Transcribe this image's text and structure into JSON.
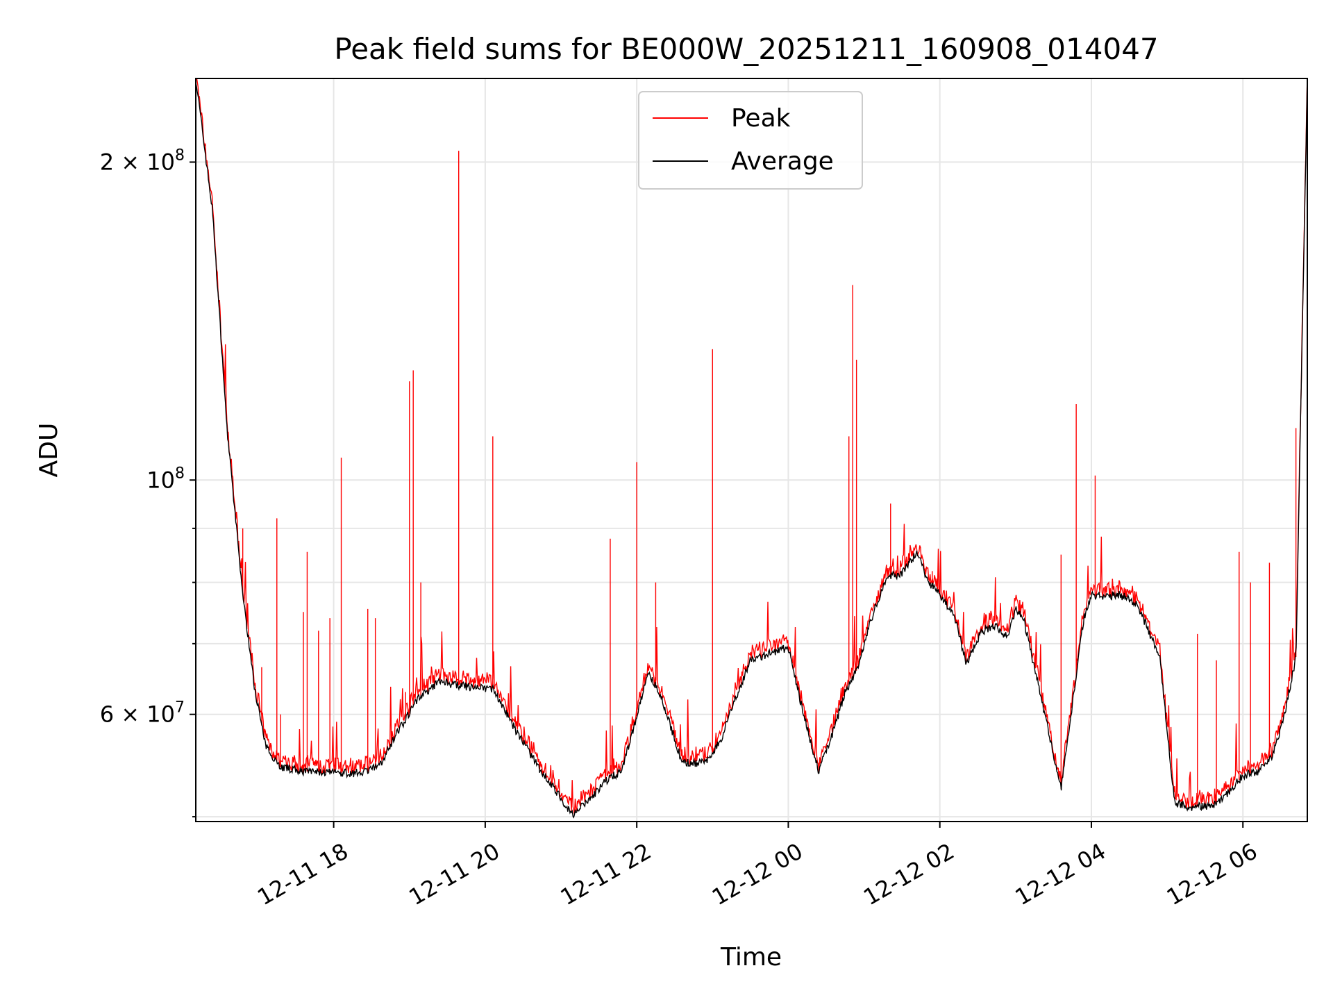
{
  "chart_data": {
    "type": "line",
    "title": "Peak field sums for BE000W_20251211_160908_014047",
    "xlabel": "Time",
    "ylabel": "ADU",
    "yscale": "log",
    "ylim": [
      47500000,
      240000000
    ],
    "xlim_hours": [
      16.18,
      30.85
    ],
    "x_unit": "hours since 2025-12-11 00:00",
    "x_ticks": [
      {
        "value": 18,
        "label": "12-11 18"
      },
      {
        "value": 20,
        "label": "12-11 20"
      },
      {
        "value": 22,
        "label": "12-11 22"
      },
      {
        "value": 24,
        "label": "12-12 00"
      },
      {
        "value": 26,
        "label": "12-12 02"
      },
      {
        "value": 28,
        "label": "12-12 04"
      },
      {
        "value": 30,
        "label": "12-12 06"
      }
    ],
    "y_major_ticks": [
      {
        "value": 60000000,
        "label": "6 × 10",
        "exp": "7"
      },
      {
        "value": 100000000,
        "label": "10",
        "exp": "8"
      },
      {
        "value": 200000000,
        "label": "2 × 10",
        "exp": "8"
      }
    ],
    "y_minor_ticks": [
      48000000,
      70000000,
      80000000,
      90000000
    ],
    "grid": true,
    "legend": {
      "position": "top-center",
      "entries": [
        {
          "label": "Peak",
          "color": "#ff0000"
        },
        {
          "label": "Average",
          "color": "#000000"
        }
      ]
    },
    "series": [
      {
        "name": "Average",
        "color": "#000000",
        "x": [
          16.18,
          16.4,
          16.6,
          16.8,
          16.95,
          17.1,
          17.3,
          17.6,
          18.0,
          18.3,
          18.6,
          18.8,
          19.1,
          19.4,
          19.6,
          19.9,
          20.1,
          20.4,
          20.7,
          21.0,
          21.15,
          21.4,
          21.6,
          21.8,
          21.95,
          22.15,
          22.3,
          22.6,
          22.9,
          23.1,
          23.3,
          23.5,
          23.75,
          23.9,
          24.0,
          24.2,
          24.4,
          24.6,
          24.75,
          24.9,
          25.1,
          25.3,
          25.5,
          25.7,
          25.85,
          26.0,
          26.2,
          26.35,
          26.55,
          26.75,
          26.9,
          27.0,
          27.1,
          27.3,
          27.6,
          27.9,
          28.0,
          28.2,
          28.35,
          28.6,
          28.9,
          29.1,
          29.3,
          29.6,
          29.8,
          30.0,
          30.2,
          30.4,
          30.55,
          30.7,
          30.85
        ],
        "values": [
          240000000,
          180000000,
          110000000,
          78000000,
          64000000,
          56000000,
          53500000,
          53000000,
          52800000,
          52800000,
          53500000,
          57000000,
          62000000,
          64500000,
          64000000,
          63500000,
          63500000,
          58000000,
          53500000,
          50000000,
          48200000,
          50000000,
          52000000,
          53000000,
          58000000,
          65500000,
          63000000,
          54000000,
          54000000,
          56500000,
          62000000,
          67500000,
          68500000,
          69000000,
          69500000,
          60000000,
          53000000,
          58000000,
          63000000,
          66000000,
          74000000,
          81000000,
          81500000,
          85500000,
          80000000,
          78000000,
          74000000,
          67000000,
          72000000,
          72500000,
          71000000,
          75500000,
          74000000,
          64000000,
          51000000,
          74000000,
          78000000,
          77500000,
          78000000,
          76500000,
          68000000,
          49500000,
          49000000,
          49200000,
          50500000,
          52500000,
          53000000,
          55000000,
          60000000,
          68000000,
          240000000
        ]
      }
    ],
    "peak_spikes": [
      {
        "x": 16.55,
        "value": 128000000
      },
      {
        "x": 16.8,
        "value": 90000000
      },
      {
        "x": 17.05,
        "value": 66500000
      },
      {
        "x": 17.25,
        "value": 92000000
      },
      {
        "x": 17.3,
        "value": 60000000
      },
      {
        "x": 17.6,
        "value": 75000000
      },
      {
        "x": 17.65,
        "value": 85500000
      },
      {
        "x": 17.8,
        "value": 72000000
      },
      {
        "x": 17.95,
        "value": 74000000
      },
      {
        "x": 18.1,
        "value": 105000000
      },
      {
        "x": 18.45,
        "value": 75500000
      },
      {
        "x": 18.55,
        "value": 74000000
      },
      {
        "x": 18.95,
        "value": 63000000
      },
      {
        "x": 19.0,
        "value": 124000000
      },
      {
        "x": 19.05,
        "value": 127000000
      },
      {
        "x": 19.15,
        "value": 80000000
      },
      {
        "x": 19.65,
        "value": 205000000
      },
      {
        "x": 20.1,
        "value": 110000000
      },
      {
        "x": 21.65,
        "value": 88000000
      },
      {
        "x": 22.0,
        "value": 104000000
      },
      {
        "x": 22.25,
        "value": 80000000
      },
      {
        "x": 23.0,
        "value": 133000000
      },
      {
        "x": 24.8,
        "value": 110000000
      },
      {
        "x": 24.85,
        "value": 153000000
      },
      {
        "x": 24.9,
        "value": 130000000
      },
      {
        "x": 25.35,
        "value": 95000000
      },
      {
        "x": 25.9,
        "value": 82000000
      },
      {
        "x": 27.6,
        "value": 85000000
      },
      {
        "x": 27.8,
        "value": 118000000
      },
      {
        "x": 28.05,
        "value": 101000000
      },
      {
        "x": 29.4,
        "value": 71500000
      },
      {
        "x": 29.65,
        "value": 67500000
      },
      {
        "x": 29.95,
        "value": 85500000
      },
      {
        "x": 30.1,
        "value": 80000000
      },
      {
        "x": 30.35,
        "value": 83500000
      },
      {
        "x": 30.7,
        "value": 112000000
      }
    ]
  }
}
